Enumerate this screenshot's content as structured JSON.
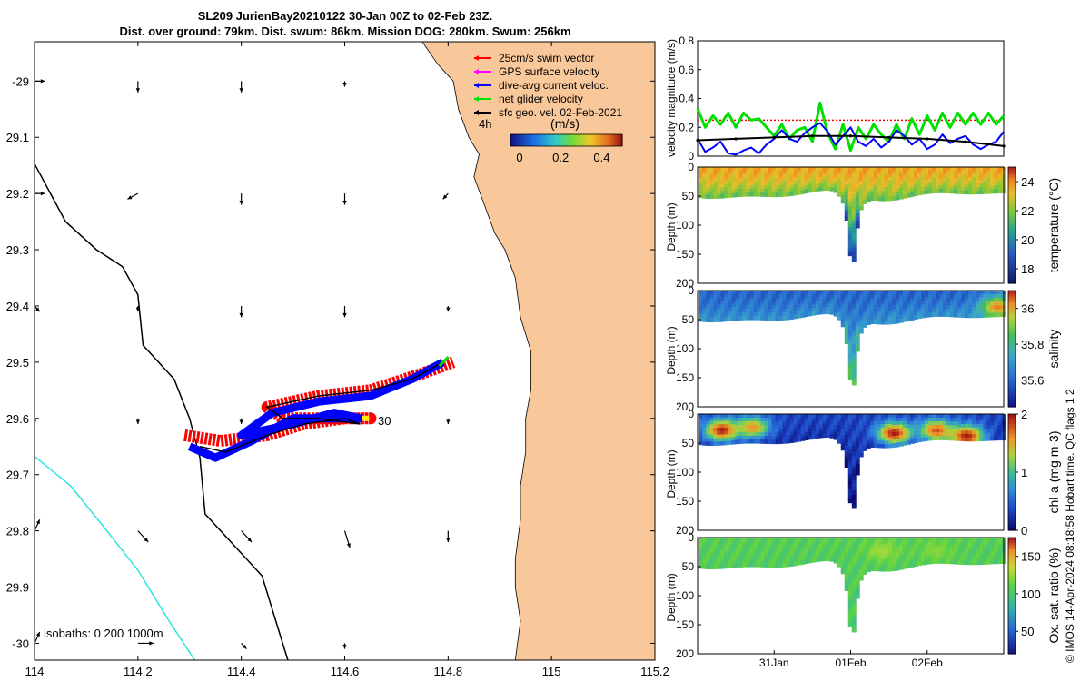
{
  "title": {
    "line1": "SL209 JurienBay20210122 30-Jan 00Z to 02-Feb 23Z.",
    "line2": "Dist. over ground: 79km. Dist. swum: 86km. Mission DOG: 280km. Swum: 256km"
  },
  "credit": "© IMOS 14-Apr-2024 08:18:58 Hobart time. QC flags 1  2",
  "colors": {
    "land": "#f9c89a",
    "isobath_200": "#000000",
    "isobath_1000": "#2fe3e3",
    "swim": "#ff0000",
    "gps": "#ff00ff",
    "dive_avg": "#0000ff",
    "net": "#00e000",
    "geo": "#000000",
    "swim_threshold": "#ff0000"
  },
  "chart_data": [
    {
      "type": "map",
      "xlim": [
        114,
        115.2
      ],
      "ylim": [
        -30.03,
        -28.93
      ],
      "xticks": [
        114,
        114.2,
        114.4,
        114.6,
        114.8,
        115,
        115.2
      ],
      "xtick_labels": [
        "114",
        "114.2",
        "114.4",
        "114.6",
        "114.8",
        "115",
        "115.2"
      ],
      "yticks": [
        -29,
        -29.1,
        -29.2,
        -29.3,
        -29.4,
        -29.5,
        -29.6,
        -29.7,
        -29.8,
        -29.9,
        -30
      ],
      "ytick_labels": [
        "-29",
        "29.1",
        "29.2",
        "29.3",
        "29.4",
        "29.5",
        "29.6",
        "29.7",
        "29.8",
        "29.9",
        "-30"
      ],
      "legend": [
        {
          "label": "25cm/s swim vector",
          "color": "#ff0000"
        },
        {
          "label": "GPS surface velocity",
          "color": "#ff00ff"
        },
        {
          "label": "dive-avg current veloc.",
          "color": "#0000ff"
        },
        {
          "label": "net glider velocity",
          "color": "#00e000"
        },
        {
          "label": "sfc geo. vel. 02-Feb-2021",
          "color": "#000000"
        }
      ],
      "colorbar": {
        "title": "(m/s)",
        "ticks": [
          0,
          0.2,
          0.4
        ],
        "tick_labels": [
          "0",
          "0.2",
          "0.4"
        ],
        "range": [
          0,
          0.5
        ]
      },
      "time_label": "4h",
      "start_label": "30",
      "isobath_text": "isobaths: 0   200  1000m",
      "coast": [
        [
          114.75,
          -28.93
        ],
        [
          114.78,
          -28.97
        ],
        [
          114.81,
          -29.0
        ],
        [
          114.82,
          -29.05
        ],
        [
          114.84,
          -29.1
        ],
        [
          114.86,
          -29.13
        ],
        [
          114.85,
          -29.17
        ],
        [
          114.87,
          -29.22
        ],
        [
          114.89,
          -29.27
        ],
        [
          114.91,
          -29.3
        ],
        [
          114.93,
          -29.35
        ],
        [
          114.94,
          -29.42
        ],
        [
          114.96,
          -29.48
        ],
        [
          114.96,
          -29.55
        ],
        [
          114.95,
          -29.6
        ],
        [
          114.95,
          -29.66
        ],
        [
          114.94,
          -29.72
        ],
        [
          114.94,
          -29.78
        ],
        [
          114.93,
          -29.85
        ],
        [
          114.93,
          -29.9
        ],
        [
          114.94,
          -29.96
        ],
        [
          114.93,
          -30.03
        ]
      ],
      "isobath200": [
        [
          113.99,
          -29.13
        ],
        [
          114.06,
          -29.25
        ],
        [
          114.12,
          -29.3
        ],
        [
          114.17,
          -29.33
        ],
        [
          114.2,
          -29.38
        ],
        [
          114.21,
          -29.47
        ],
        [
          114.27,
          -29.53
        ],
        [
          114.3,
          -29.6
        ],
        [
          114.32,
          -29.67
        ],
        [
          114.33,
          -29.77
        ],
        [
          114.38,
          -29.82
        ],
        [
          114.44,
          -29.88
        ],
        [
          114.47,
          -29.97
        ],
        [
          114.49,
          -30.03
        ]
      ],
      "isobath1000": [
        [
          113.99,
          -29.66
        ],
        [
          114.07,
          -29.72
        ],
        [
          114.14,
          -29.8
        ],
        [
          114.2,
          -29.87
        ],
        [
          114.26,
          -29.96
        ],
        [
          114.31,
          -30.03
        ]
      ],
      "track_blue": [
        [
          114.3,
          -29.65
        ],
        [
          114.35,
          -29.67
        ],
        [
          114.42,
          -29.64
        ],
        [
          114.5,
          -29.6
        ],
        [
          114.57,
          -29.6
        ],
        [
          114.63,
          -29.6
        ],
        [
          114.58,
          -29.59
        ],
        [
          114.5,
          -29.61
        ],
        [
          114.4,
          -29.63
        ],
        [
          114.46,
          -29.59
        ],
        [
          114.55,
          -29.57
        ],
        [
          114.65,
          -29.56
        ],
        [
          114.73,
          -29.53
        ],
        [
          114.79,
          -29.5
        ]
      ],
      "track_red": [
        [
          114.29,
          -29.63
        ],
        [
          114.36,
          -29.64
        ],
        [
          114.45,
          -29.63
        ],
        [
          114.52,
          -29.61
        ],
        [
          114.6,
          -29.6
        ],
        [
          114.65,
          -29.6
        ],
        [
          114.55,
          -29.6
        ],
        [
          114.48,
          -29.6
        ],
        [
          114.45,
          -29.58
        ],
        [
          114.55,
          -29.56
        ],
        [
          114.65,
          -29.55
        ],
        [
          114.75,
          -29.52
        ],
        [
          114.81,
          -29.5
        ]
      ],
      "track_black": [
        [
          114.32,
          -29.65
        ],
        [
          114.37,
          -29.66
        ],
        [
          114.45,
          -29.63
        ],
        [
          114.52,
          -29.61
        ],
        [
          114.6,
          -29.6
        ],
        [
          114.63,
          -29.61
        ],
        [
          114.55,
          -29.6
        ],
        [
          114.48,
          -29.6
        ],
        [
          114.45,
          -29.58
        ],
        [
          114.55,
          -29.56
        ],
        [
          114.65,
          -29.55
        ],
        [
          114.73,
          -29.53
        ],
        [
          114.79,
          -29.5
        ]
      ],
      "geo_vectors": [
        [
          114,
          -29,
          0.02,
          0
        ],
        [
          114.2,
          -29,
          0,
          -0.02
        ],
        [
          114.4,
          -29,
          0,
          -0.02
        ],
        [
          114.6,
          -29,
          0,
          -0.01
        ],
        [
          114,
          -29.2,
          0.02,
          0
        ],
        [
          114.2,
          -29.2,
          -0.02,
          -0.01
        ],
        [
          114.4,
          -29.2,
          0,
          -0.02
        ],
        [
          114.6,
          -29.2,
          0,
          -0.02
        ],
        [
          114.8,
          -29.2,
          -0.01,
          -0.01
        ],
        [
          114,
          -29.4,
          0.01,
          -0.01
        ],
        [
          114.2,
          -29.4,
          0,
          -0.01
        ],
        [
          114.4,
          -29.4,
          0,
          -0.02
        ],
        [
          114.6,
          -29.4,
          0,
          -0.02
        ],
        [
          114.8,
          -29.4,
          0,
          -0.01
        ],
        [
          114,
          -29.6,
          0,
          -0.01
        ],
        [
          114.2,
          -29.6,
          0,
          -0.01
        ],
        [
          114.4,
          -29.6,
          0,
          -0.01
        ],
        [
          114.6,
          -29.6,
          0,
          -0.01
        ],
        [
          114.8,
          -29.6,
          0,
          -0.01
        ],
        [
          114,
          -29.8,
          0.01,
          0.02
        ],
        [
          114.2,
          -29.8,
          0.02,
          -0.02
        ],
        [
          114.4,
          -29.8,
          0.02,
          -0.02
        ],
        [
          114.6,
          -29.8,
          0.01,
          -0.03
        ],
        [
          114.8,
          -29.8,
          0,
          -0.02
        ],
        [
          114,
          -30,
          0.01,
          0.02
        ],
        [
          114.2,
          -30,
          0.03,
          0
        ],
        [
          114.4,
          -30,
          0.01,
          -0.01
        ],
        [
          114.6,
          -30,
          0,
          -0.01
        ]
      ]
    },
    {
      "type": "line",
      "ylabel": "velocity magnitude (m/s)",
      "xlim": [
        0,
        4
      ],
      "ylim": [
        0,
        0.8
      ],
      "yticks": [
        0,
        0.2,
        0.4,
        0.6,
        0.8
      ],
      "ytick_labels": [
        "0",
        "0.2",
        "0.4",
        "0.6",
        "0.8"
      ],
      "threshold": 0.25,
      "series": [
        {
          "name": "net glider velocity",
          "color": "#00e000",
          "x": [
            0,
            0.1,
            0.2,
            0.3,
            0.4,
            0.5,
            0.6,
            0.7,
            0.8,
            0.9,
            1,
            1.1,
            1.2,
            1.3,
            1.4,
            1.5,
            1.6,
            1.7,
            1.8,
            1.9,
            2,
            2.1,
            2.2,
            2.3,
            2.4,
            2.5,
            2.6,
            2.7,
            2.8,
            2.9,
            3,
            3.1,
            3.2,
            3.3,
            3.4,
            3.5,
            3.6,
            3.7,
            3.8,
            3.9,
            4
          ],
          "y": [
            0.33,
            0.2,
            0.28,
            0.22,
            0.3,
            0.2,
            0.3,
            0.25,
            0.26,
            0.2,
            0.14,
            0.22,
            0.12,
            0.18,
            0.2,
            0.1,
            0.37,
            0.16,
            0.05,
            0.22,
            0.04,
            0.2,
            0.12,
            0.22,
            0.15,
            0.1,
            0.22,
            0.12,
            0.26,
            0.15,
            0.28,
            0.18,
            0.3,
            0.2,
            0.3,
            0.22,
            0.3,
            0.22,
            0.3,
            0.22,
            0.28
          ]
        },
        {
          "name": "dive-avg current veloc.",
          "color": "#0000ff",
          "x": [
            0,
            0.1,
            0.2,
            0.3,
            0.4,
            0.5,
            0.6,
            0.7,
            0.8,
            0.9,
            1,
            1.1,
            1.2,
            1.3,
            1.4,
            1.5,
            1.6,
            1.7,
            1.8,
            1.9,
            2,
            2.1,
            2.2,
            2.3,
            2.4,
            2.5,
            2.6,
            2.7,
            2.8,
            2.9,
            3,
            3.1,
            3.2,
            3.3,
            3.4,
            3.5,
            3.6,
            3.7,
            3.8,
            3.9,
            4
          ],
          "y": [
            0.12,
            0.03,
            0.06,
            0.1,
            0.02,
            0.01,
            0.04,
            0.06,
            0.02,
            0.08,
            0.12,
            0.18,
            0.12,
            0.1,
            0.16,
            0.2,
            0.23,
            0.17,
            0.08,
            0.14,
            0.2,
            0.1,
            0.07,
            0.12,
            0.06,
            0.1,
            0.18,
            0.14,
            0.08,
            0.12,
            0.05,
            0.08,
            0.15,
            0.09,
            0.12,
            0.14,
            0.08,
            0.05,
            0.08,
            0.1,
            0.17
          ]
        },
        {
          "name": "sfc geo. vel.",
          "color": "#000000",
          "x": [
            0,
            0.5,
            1,
            1.5,
            2,
            2.5,
            3,
            3.5,
            4
          ],
          "y": [
            0.11,
            0.12,
            0.13,
            0.14,
            0.14,
            0.13,
            0.12,
            0.1,
            0.07
          ]
        }
      ]
    },
    {
      "type": "section",
      "ylabel": "Depth (m)",
      "cbar_label": "temperature (°C)",
      "ylim": [
        0,
        200
      ],
      "yticks": [
        0,
        50,
        100,
        150,
        200
      ],
      "ytick_labels": [
        "0",
        "50",
        "100",
        "150",
        "200"
      ],
      "clim": [
        17,
        25
      ],
      "cbar_ticks": [
        18,
        20,
        22,
        24
      ],
      "cbar_tick_labels": [
        "18",
        "20",
        "22",
        "24"
      ],
      "colormap": "thermal",
      "surface_value": 23.6,
      "deep_value": 19.2,
      "hotspots": []
    },
    {
      "type": "section",
      "ylabel": "Depth (m)",
      "cbar_label": "salinity",
      "ylim": [
        0,
        200
      ],
      "yticks": [
        0,
        50,
        100,
        150,
        200
      ],
      "ytick_labels": [
        "0",
        "50",
        "100",
        "150",
        "200"
      ],
      "clim": [
        35.45,
        36.1
      ],
      "cbar_ticks": [
        35.6,
        35.8,
        36
      ],
      "cbar_tick_labels": [
        "35.6",
        "35.8",
        "36"
      ],
      "colormap": "haline",
      "surface_value": 35.6,
      "deep_value": 35.82,
      "hotspots": [
        {
          "x": 3.9,
          "depth": 25,
          "value": 36.05
        }
      ]
    },
    {
      "type": "section",
      "ylabel": "Depth (m)",
      "cbar_label": "chl-a (mg m-3)",
      "ylim": [
        0,
        200
      ],
      "yticks": [
        0,
        50,
        100,
        150,
        200
      ],
      "ytick_labels": [
        "0",
        "50",
        "100",
        "150",
        "200"
      ],
      "clim": [
        0,
        2
      ],
      "cbar_ticks": [
        0,
        1,
        2
      ],
      "cbar_tick_labels": [
        "0",
        "1",
        "2"
      ],
      "colormap": "algae",
      "surface_value": 0.35,
      "deep_value": 0.1,
      "hotspots": [
        {
          "x": 0.3,
          "depth": 25,
          "value": 2
        },
        {
          "x": 0.7,
          "depth": 20,
          "value": 1.6
        },
        {
          "x": 2.55,
          "depth": 30,
          "value": 2
        },
        {
          "x": 3.1,
          "depth": 25,
          "value": 1.8
        },
        {
          "x": 3.5,
          "depth": 35,
          "value": 2
        }
      ]
    },
    {
      "type": "section",
      "ylabel": "Depth (m)",
      "cbar_label": "Ox. sat. ratio (%)",
      "ylim": [
        0,
        200
      ],
      "yticks": [
        0,
        50,
        100,
        150,
        200
      ],
      "ytick_labels": [
        "0",
        "50",
        "100",
        "150",
        "200"
      ],
      "clim": [
        20,
        175
      ],
      "cbar_ticks": [
        50,
        100,
        150
      ],
      "cbar_tick_labels": [
        "50",
        "100",
        "150"
      ],
      "colormap": "oxy",
      "surface_value": 108,
      "deep_value": 104,
      "hotspots": [
        {
          "x": 2.4,
          "depth": 20,
          "value": 128
        },
        {
          "x": 3.1,
          "depth": 20,
          "value": 122
        }
      ],
      "xticks": [
        1,
        2,
        3
      ],
      "xtick_labels": [
        "31Jan",
        "01Feb",
        "02Feb"
      ]
    }
  ]
}
